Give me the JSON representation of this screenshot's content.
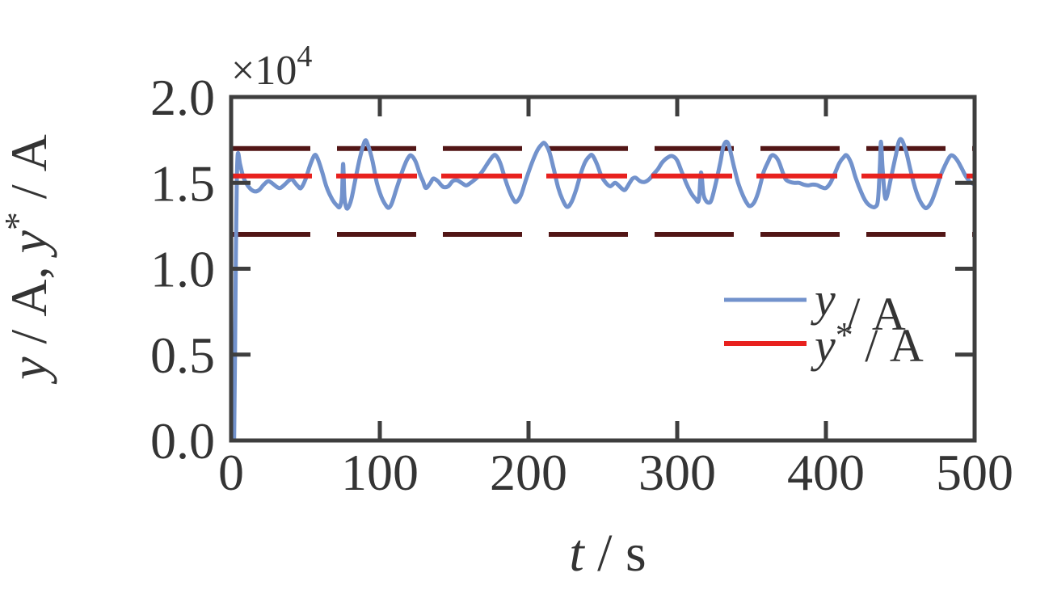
{
  "figure": {
    "background": "#ffffff",
    "axis_color": "#3e3e3e",
    "text_color": "#343434",
    "offset": {
      "base": "×10",
      "exp": "4"
    },
    "xlabel": {
      "v": "t",
      "rest": " / s"
    },
    "ylabel": {
      "p1": "y",
      "p2": " / A, ",
      "p3": "y",
      "p4": "*",
      "p5": " / A"
    },
    "legend": [
      {
        "v": "y",
        "sup": "",
        "rest": " / A"
      },
      {
        "v": "y",
        "sup": "*",
        "rest": " / A"
      }
    ]
  },
  "chart_data": {
    "type": "line",
    "title": "",
    "xlabel": "t / s",
    "ylabel": "y / A, y* / A",
    "y_axis_offset_text": "×10^4",
    "xlim": [
      0,
      500
    ],
    "ylim": [
      0,
      2.0
    ],
    "grid": false,
    "legend_position": "inside lower right",
    "x_ticks": {
      "values": [
        0,
        100,
        200,
        300,
        400,
        500
      ],
      "labels": [
        "0",
        "100",
        "200",
        "300",
        "400",
        "500"
      ]
    },
    "y_ticks": {
      "values": [
        0,
        0.5,
        1.0,
        1.5,
        2.0
      ],
      "labels": [
        "0.0",
        "0.5",
        "1.0",
        "1.5",
        "2.0"
      ]
    },
    "hlines": [
      {
        "name": "setpoint y*/A",
        "value": 1.54,
        "color": "#e8211e",
        "style": "dashed",
        "dash": [
          100,
          30
        ],
        "width": 6
      },
      {
        "name": "upper bound",
        "value": 1.7,
        "color": "#521616",
        "style": "dashed",
        "dash": [
          98,
          33
        ],
        "width": 6
      },
      {
        "name": "lower bound",
        "value": 1.2,
        "color": "#521616",
        "style": "dashed",
        "dash": [
          98,
          33
        ],
        "width": 6
      }
    ],
    "series": [
      {
        "name": "y/A",
        "type": "line",
        "style": "solid",
        "color": "#7292cc",
        "width": 5,
        "units": "t in s, y in 1e4 A",
        "points": [
          [
            2,
            0.0
          ],
          [
            2.6,
            0.5
          ],
          [
            3.2,
            1.1
          ],
          [
            3.8,
            1.5
          ],
          [
            4.5,
            1.67
          ],
          [
            6,
            1.61
          ],
          [
            8,
            1.54
          ],
          [
            10,
            1.5
          ],
          [
            13,
            1.465
          ],
          [
            16,
            1.45
          ],
          [
            19,
            1.46
          ],
          [
            22,
            1.49
          ],
          [
            25,
            1.51
          ],
          [
            28,
            1.495
          ],
          [
            31,
            1.475
          ],
          [
            33,
            1.47
          ],
          [
            36,
            1.49
          ],
          [
            39,
            1.515
          ],
          [
            41,
            1.52
          ],
          [
            43,
            1.5
          ],
          [
            45,
            1.48
          ],
          [
            47,
            1.47
          ],
          [
            50,
            1.52
          ],
          [
            53,
            1.6
          ],
          [
            56,
            1.66
          ],
          [
            58,
            1.645
          ],
          [
            61,
            1.57
          ],
          [
            64,
            1.48
          ],
          [
            67,
            1.42
          ],
          [
            69,
            1.39
          ],
          [
            71,
            1.37
          ],
          [
            73,
            1.36
          ],
          [
            74.5,
            1.42
          ],
          [
            75.3,
            1.61
          ],
          [
            76.2,
            1.42
          ],
          [
            77.5,
            1.355
          ],
          [
            79,
            1.36
          ],
          [
            81,
            1.41
          ],
          [
            84,
            1.54
          ],
          [
            87,
            1.66
          ],
          [
            90,
            1.745
          ],
          [
            92,
            1.72
          ],
          [
            95,
            1.63
          ],
          [
            98,
            1.5
          ],
          [
            101,
            1.42
          ],
          [
            104,
            1.37
          ],
          [
            106,
            1.355
          ],
          [
            108,
            1.38
          ],
          [
            111,
            1.46
          ],
          [
            114,
            1.54
          ],
          [
            117,
            1.61
          ],
          [
            119,
            1.645
          ],
          [
            121,
            1.66
          ],
          [
            124,
            1.625
          ],
          [
            127,
            1.55
          ],
          [
            129,
            1.51
          ],
          [
            131,
            1.47
          ],
          [
            134,
            1.5
          ],
          [
            136,
            1.525
          ],
          [
            139,
            1.51
          ],
          [
            141,
            1.49
          ],
          [
            143,
            1.475
          ],
          [
            146,
            1.48
          ],
          [
            149,
            1.51
          ],
          [
            152,
            1.515
          ],
          [
            155,
            1.5
          ],
          [
            158,
            1.485
          ],
          [
            161,
            1.5
          ],
          [
            164,
            1.52
          ],
          [
            167,
            1.545
          ],
          [
            170,
            1.58
          ],
          [
            173,
            1.62
          ],
          [
            176,
            1.655
          ],
          [
            178,
            1.66
          ],
          [
            181,
            1.615
          ],
          [
            184,
            1.53
          ],
          [
            187,
            1.455
          ],
          [
            190,
            1.4
          ],
          [
            192,
            1.39
          ],
          [
            195,
            1.43
          ],
          [
            198,
            1.51
          ],
          [
            202,
            1.61
          ],
          [
            206,
            1.69
          ],
          [
            209,
            1.725
          ],
          [
            211,
            1.73
          ],
          [
            214,
            1.68
          ],
          [
            217,
            1.58
          ],
          [
            220,
            1.47
          ],
          [
            223,
            1.4
          ],
          [
            226,
            1.36
          ],
          [
            229,
            1.39
          ],
          [
            232,
            1.46
          ],
          [
            235,
            1.55
          ],
          [
            238,
            1.62
          ],
          [
            241,
            1.655
          ],
          [
            243,
            1.66
          ],
          [
            246,
            1.61
          ],
          [
            249,
            1.54
          ],
          [
            252,
            1.5
          ],
          [
            255,
            1.48
          ],
          [
            258,
            1.5
          ],
          [
            260,
            1.49
          ],
          [
            263,
            1.465
          ],
          [
            265,
            1.46
          ],
          [
            268,
            1.5
          ],
          [
            270,
            1.525
          ],
          [
            272,
            1.53
          ],
          [
            275,
            1.51
          ],
          [
            278,
            1.505
          ],
          [
            281,
            1.52
          ],
          [
            284,
            1.55
          ],
          [
            287,
            1.58
          ],
          [
            290,
            1.62
          ],
          [
            294,
            1.65
          ],
          [
            297,
            1.655
          ],
          [
            300,
            1.63
          ],
          [
            303,
            1.565
          ],
          [
            306,
            1.5
          ],
          [
            309,
            1.445
          ],
          [
            312,
            1.41
          ],
          [
            314.5,
            1.4
          ],
          [
            316,
            1.56
          ],
          [
            317.5,
            1.44
          ],
          [
            319,
            1.4
          ],
          [
            321,
            1.385
          ],
          [
            323,
            1.4
          ],
          [
            326,
            1.5
          ],
          [
            329,
            1.62
          ],
          [
            331,
            1.71
          ],
          [
            333,
            1.74
          ],
          [
            335,
            1.71
          ],
          [
            338,
            1.6
          ],
          [
            341,
            1.5
          ],
          [
            344,
            1.43
          ],
          [
            347,
            1.38
          ],
          [
            349,
            1.365
          ],
          [
            352,
            1.39
          ],
          [
            355,
            1.46
          ],
          [
            358,
            1.56
          ],
          [
            361,
            1.62
          ],
          [
            363,
            1.655
          ],
          [
            365,
            1.66
          ],
          [
            368,
            1.63
          ],
          [
            371,
            1.56
          ],
          [
            373,
            1.52
          ],
          [
            376,
            1.505
          ],
          [
            379,
            1.5
          ],
          [
            382,
            1.5
          ],
          [
            385,
            1.49
          ],
          [
            388,
            1.485
          ],
          [
            391,
            1.49
          ],
          [
            394,
            1.487
          ],
          [
            397,
            1.475
          ],
          [
            400,
            1.47
          ],
          [
            403,
            1.5
          ],
          [
            406,
            1.555
          ],
          [
            409,
            1.615
          ],
          [
            412,
            1.65
          ],
          [
            414,
            1.66
          ],
          [
            417,
            1.615
          ],
          [
            420,
            1.53
          ],
          [
            424,
            1.44
          ],
          [
            427,
            1.39
          ],
          [
            430,
            1.365
          ],
          [
            433,
            1.36
          ],
          [
            435,
            1.4
          ],
          [
            436.3,
            1.6
          ],
          [
            437,
            1.74
          ],
          [
            438,
            1.6
          ],
          [
            439.5,
            1.43
          ],
          [
            441,
            1.42
          ],
          [
            444,
            1.54
          ],
          [
            447,
            1.66
          ],
          [
            449,
            1.74
          ],
          [
            451,
            1.75
          ],
          [
            454,
            1.68
          ],
          [
            457,
            1.57
          ],
          [
            460,
            1.47
          ],
          [
            463,
            1.4
          ],
          [
            466,
            1.36
          ],
          [
            468,
            1.355
          ],
          [
            471,
            1.39
          ],
          [
            474,
            1.46
          ],
          [
            477,
            1.54
          ],
          [
            480,
            1.6
          ],
          [
            483,
            1.65
          ],
          [
            485,
            1.66
          ],
          [
            488,
            1.635
          ],
          [
            491,
            1.59
          ],
          [
            494,
            1.54
          ],
          [
            497,
            1.505
          ],
          [
            500,
            1.49
          ]
        ]
      }
    ]
  }
}
